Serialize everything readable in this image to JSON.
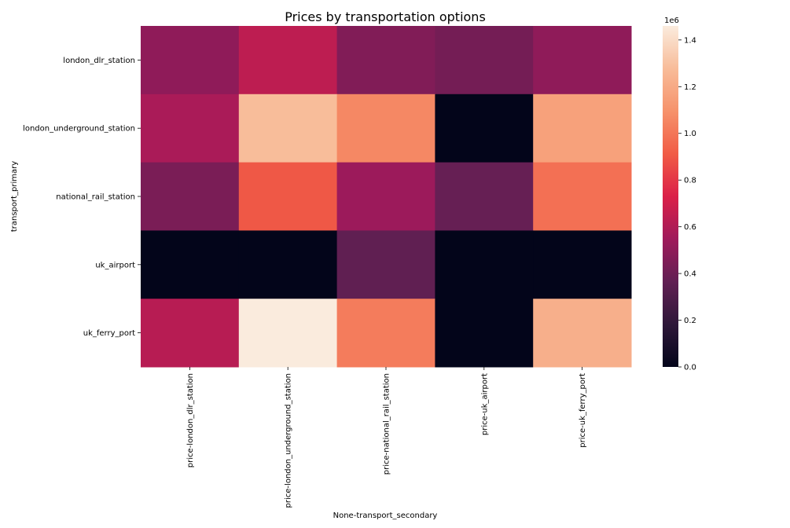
{
  "chart_data": {
    "type": "heatmap",
    "title": "Prices by transportation options",
    "xlabel": "None-transport_secondary",
    "ylabel": "transport_primary",
    "x_categories": [
      "price-london_dlr_station",
      "price-london_underground_station",
      "price-national_rail_station",
      "price-uk_airport",
      "price-uk_ferry_port"
    ],
    "y_categories": [
      "london_dlr_station",
      "london_underground_station",
      "national_rail_station",
      "uk_airport",
      "uk_ferry_port"
    ],
    "values": [
      [
        500000,
        640000,
        460000,
        420000,
        500000
      ],
      [
        580000,
        1280000,
        1060000,
        0,
        1160000
      ],
      [
        440000,
        900000,
        540000,
        380000,
        980000
      ],
      [
        0,
        0,
        360000,
        0,
        0
      ],
      [
        620000,
        1460000,
        1020000,
        0,
        1220000
      ]
    ],
    "colorbar": {
      "range": [
        0,
        1460000
      ],
      "ticks": [
        "0.0",
        "0.2",
        "0.4",
        "0.6",
        "0.8",
        "1.0",
        "1.2",
        "1.4"
      ],
      "tick_values": [
        0,
        200000,
        400000,
        600000,
        800000,
        1000000,
        1200000,
        1400000
      ],
      "offset_label": "1e6",
      "colormap": "rocket"
    }
  }
}
